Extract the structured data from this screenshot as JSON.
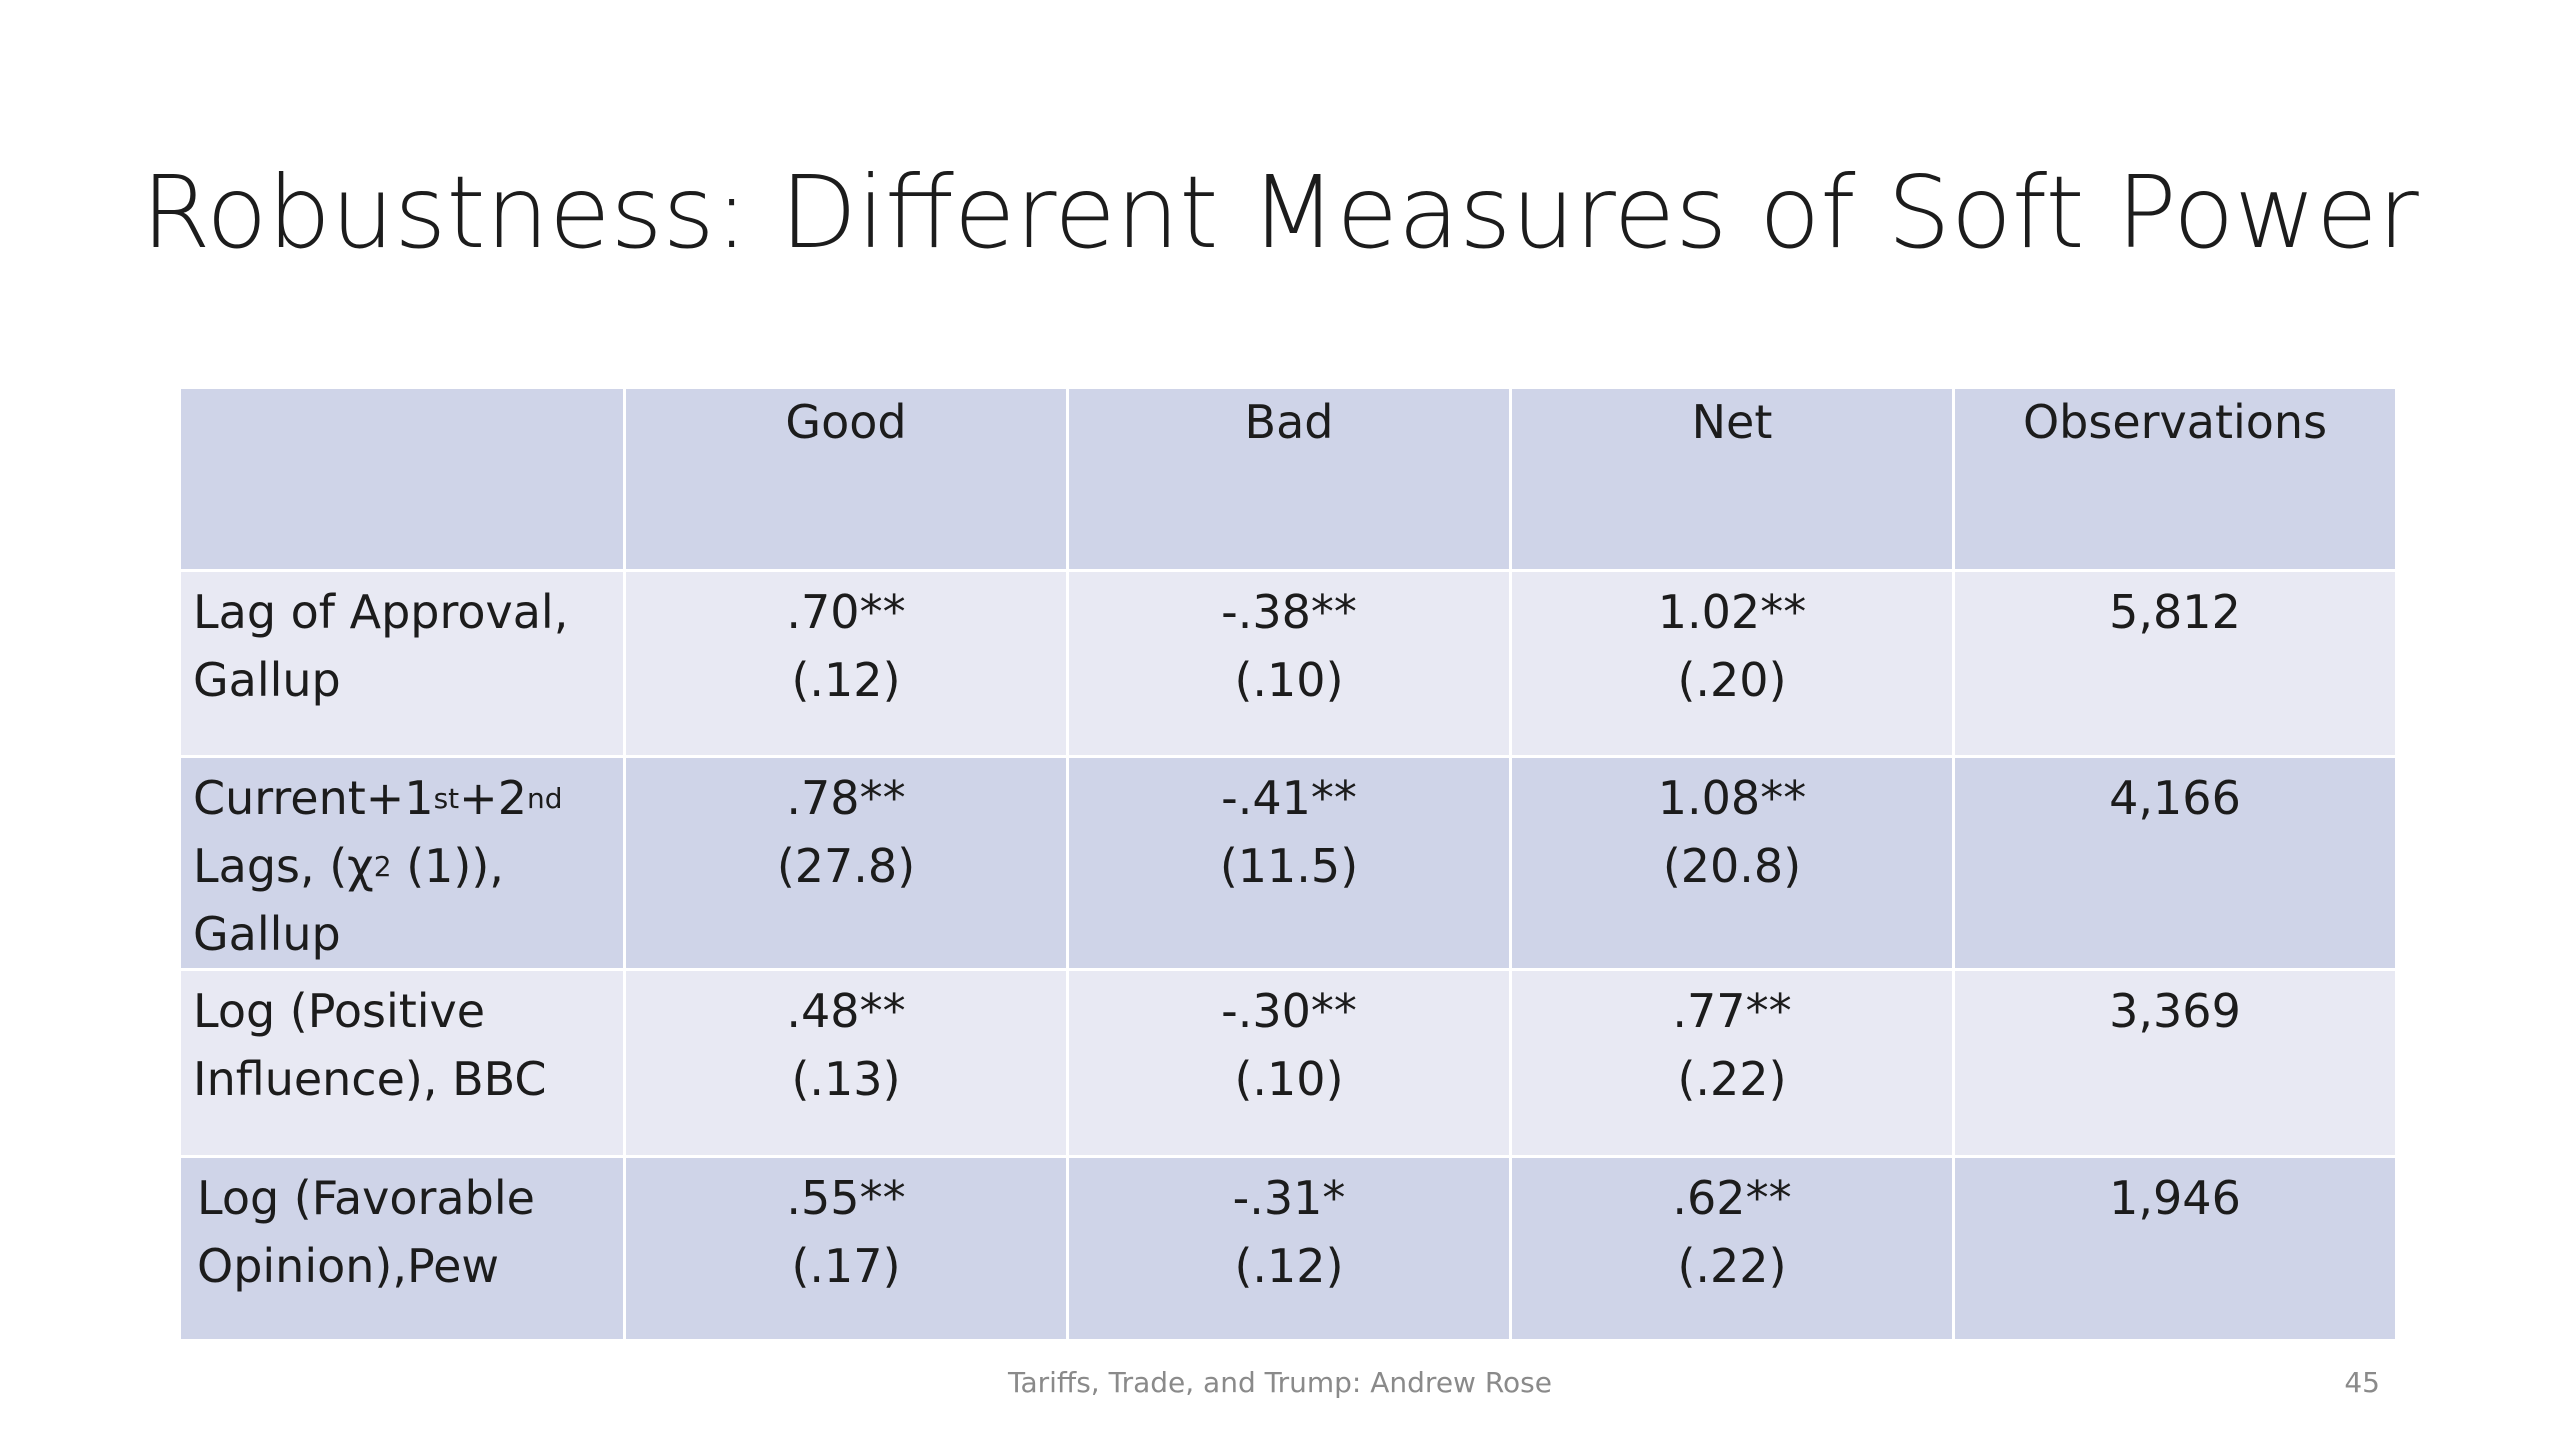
{
  "slide": {
    "title": "Robustness: Different Measures of Soft Power",
    "footer": "Tariffs, Trade, and Trump: Andrew Rose",
    "page_number": "45"
  },
  "table": {
    "headers": [
      "",
      "Good",
      "Bad",
      "Net",
      "Observations"
    ],
    "rows": [
      {
        "label_lines": [
          "Lag of Approval,",
          "Gallup"
        ],
        "good": [
          ".70**",
          "(.12)"
        ],
        "bad": [
          "-.38**",
          "(.10)"
        ],
        "net": [
          "1.02**",
          "(.20)"
        ],
        "observations": "5,812"
      },
      {
        "label_parts": {
          "line1_a": "Current+1",
          "line1_sup1": "st",
          "line1_b": "+2",
          "line1_sup2": "nd",
          "line2_a": "Lags, (χ",
          "line2_sup": "2",
          "line2_b": " (1)),",
          "line3": "Gallup"
        },
        "good": [
          ".78**",
          "(27.8)"
        ],
        "bad": [
          "-.41**",
          "(11.5)"
        ],
        "net": [
          "1.08**",
          "(20.8)"
        ],
        "observations": "4,166"
      },
      {
        "label_lines": [
          "Log (Positive",
          "Influence), BBC"
        ],
        "good": [
          ".48**",
          "(.13)"
        ],
        "bad": [
          "-.30**",
          "(.10)"
        ],
        "net": [
          ".77**",
          "(.22)"
        ],
        "observations": "3,369"
      },
      {
        "label_lines": [
          "Log (Favorable",
          "Opinion),Pew"
        ],
        "good": [
          ".55**",
          "(.17)"
        ],
        "bad": [
          "-.31*",
          "(.12)"
        ],
        "net": [
          ".62**",
          "(.22)"
        ],
        "observations": "1,946"
      }
    ]
  },
  "colors": {
    "header_and_dark_rows": "#cfd4e8",
    "light_rows": "#e8e9f3",
    "text": "#1c1c1c",
    "footer_text": "#8a8a8a"
  }
}
